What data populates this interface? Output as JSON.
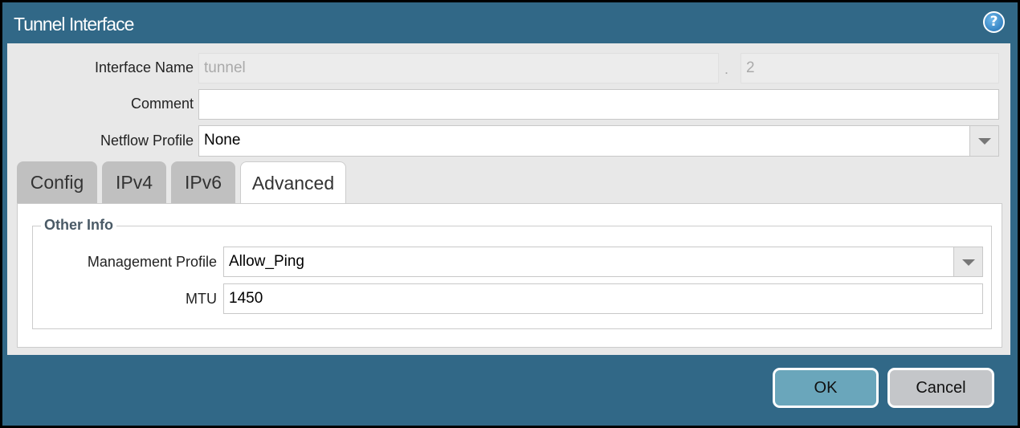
{
  "title": "Tunnel Interface",
  "help_icon": "question-circle-icon",
  "form": {
    "interface_name_label": "Interface Name",
    "interface_name_value": "tunnel",
    "separator": ".",
    "interface_number": "2",
    "comment_label": "Comment",
    "comment_value": "",
    "netflow_label": "Netflow Profile",
    "netflow_value": "None"
  },
  "tabs": [
    {
      "label": "Config"
    },
    {
      "label": "IPv4"
    },
    {
      "label": "IPv6"
    },
    {
      "label": "Advanced",
      "active": true
    }
  ],
  "advanced": {
    "section_title": "Other Info",
    "mgmt_label": "Management Profile",
    "mgmt_value": "Allow_Ping",
    "mtu_label": "MTU",
    "mtu_value": "1450"
  },
  "buttons": {
    "ok": "OK",
    "cancel": "Cancel"
  },
  "colors": {
    "titlebar": "#316887",
    "ok_button": "#6aa6bb",
    "cancel_button": "#c4c6c9"
  }
}
